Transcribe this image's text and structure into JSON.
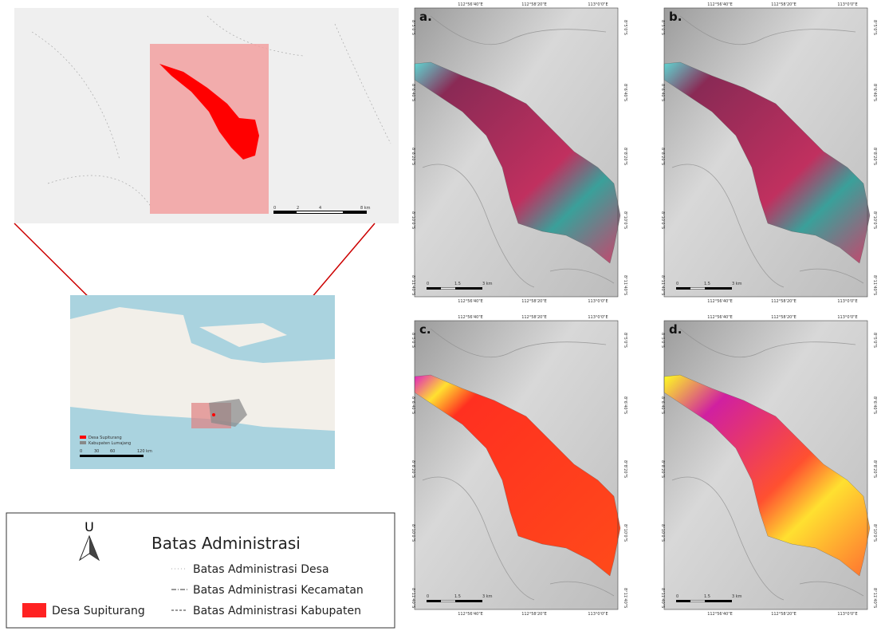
{
  "inset": {
    "scale_labels": [
      "0",
      "2",
      "4",
      "8 km"
    ]
  },
  "overview": {
    "legend": [
      "Desa Supiturang",
      "Kabupaten Lumajang"
    ],
    "scale_labels": [
      "0",
      "30",
      "60",
      "120 km"
    ]
  },
  "legend": {
    "north": "U",
    "title": "Batas Administrasi",
    "desa": "Desa Supiturang",
    "items": [
      "Batas Administrasi Desa",
      "Batas Administrasi Kecamatan",
      "Batas Administrasi Kabupaten"
    ]
  },
  "panels": [
    {
      "label": "a.",
      "lon": [
        "112°56'40\"E",
        "112°58'20\"E",
        "113°0'0\"E"
      ],
      "lat": [
        "8°5'0\"S",
        "8°6'40\"S",
        "8°8'20\"S",
        "8°10'0\"S",
        "8°11'40\"S"
      ],
      "scale": [
        "0",
        "1.5",
        "3 km"
      ]
    },
    {
      "label": "b.",
      "lon": [
        "112°56'40\"E",
        "112°58'20\"E",
        "113°0'0\"E"
      ],
      "lat": [
        "8°5'0\"S",
        "8°6'40\"S",
        "8°8'20\"S",
        "8°10'0\"S",
        "8°11'40\"S"
      ],
      "scale": [
        "0",
        "1.5",
        "3 km"
      ]
    },
    {
      "label": "c.",
      "lon": [
        "112°56'40\"E",
        "112°58'20\"E",
        "113°0'0\"E"
      ],
      "lat": [
        "8°5'0\"S",
        "8°6'40\"S",
        "8°8'20\"S",
        "8°10'0\"S",
        "8°11'40\"S"
      ],
      "scale": [
        "0",
        "1.5",
        "3 km"
      ]
    },
    {
      "label": "d.",
      "lon": [
        "112°56'40\"E",
        "112°58'20\"E",
        "113°0'0\"E"
      ],
      "lat": [
        "8°5'0\"S",
        "8°6'40\"S",
        "8°8'20\"S",
        "8°10'0\"S",
        "8°11'40\"S"
      ],
      "scale": [
        "0",
        "1.5",
        "3 km"
      ]
    }
  ]
}
